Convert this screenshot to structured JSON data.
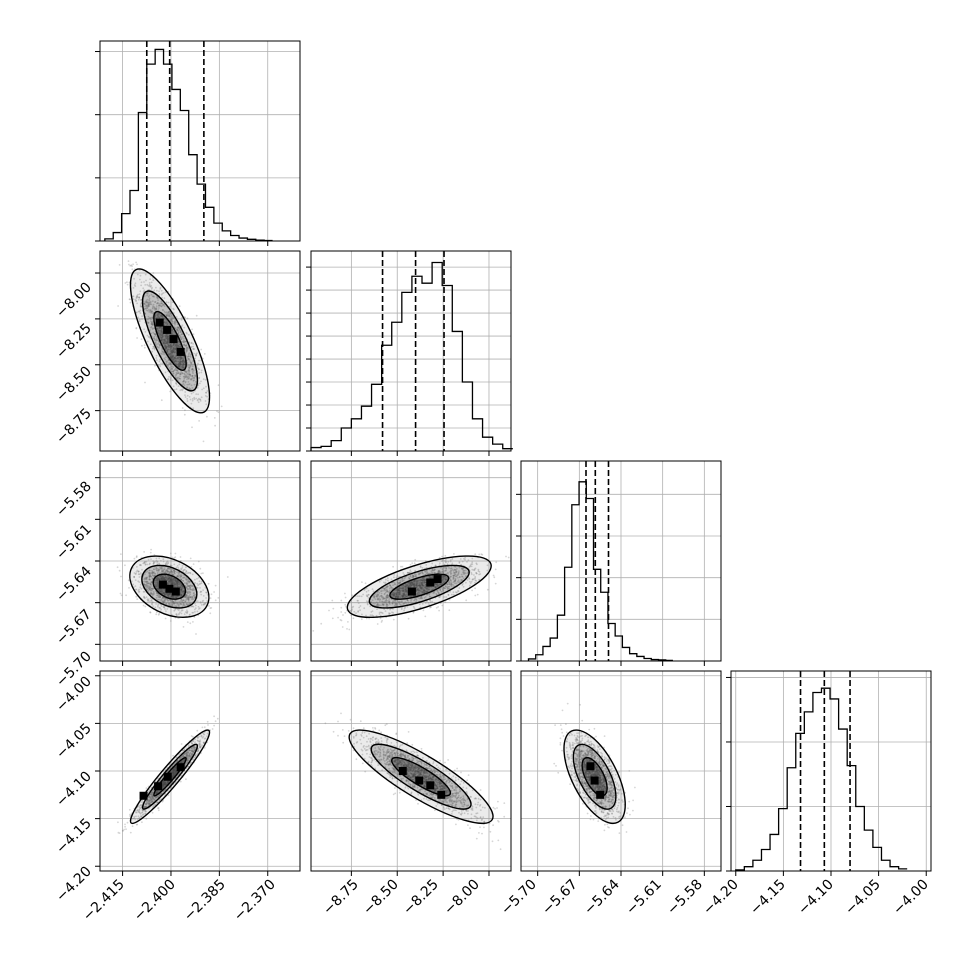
{
  "figure": {
    "type": "corner-plot",
    "params": 4,
    "quantile_lines": "dashed",
    "grid": true,
    "colors": {
      "line": "#000000",
      "points": "#8a8a8a",
      "grid": "#b0b0b0",
      "background": "#ffffff"
    }
  },
  "chart_data": [
    {
      "type": "histogram",
      "panel": "hist-1",
      "x_range": [
        -2.422,
        -2.36
      ],
      "ylim": [
        0,
        950
      ],
      "y_ticks": [
        0,
        300,
        600,
        900
      ],
      "bin_edges": [
        -2.4205,
        -2.4179,
        -2.4153,
        -2.4127,
        -2.4101,
        -2.4075,
        -2.4049,
        -2.4023,
        -2.3997,
        -2.3971,
        -2.3945,
        -2.3919,
        -2.3893,
        -2.3867,
        -2.3841,
        -2.3815,
        -2.3789,
        -2.3763,
        -2.3737,
        -2.3711,
        -2.3685
      ],
      "counts": [
        10,
        40,
        130,
        240,
        610,
        840,
        910,
        840,
        720,
        620,
        410,
        270,
        160,
        85,
        48,
        26,
        14,
        8,
        4,
        2
      ],
      "quantiles": [
        -2.4075,
        -2.4004,
        -2.3898
      ]
    },
    {
      "type": "histogram",
      "panel": "hist-2",
      "x_range": [
        -8.97,
        -7.88
      ],
      "ylim": [
        0,
        870
      ],
      "y_ticks": [
        0,
        100,
        200,
        300,
        400,
        500,
        600,
        700,
        800
      ],
      "bin_edges": [
        -8.97,
        -8.915,
        -8.86,
        -8.805,
        -8.75,
        -8.695,
        -8.64,
        -8.585,
        -8.53,
        -8.475,
        -8.42,
        -8.365,
        -8.31,
        -8.255,
        -8.2,
        -8.145,
        -8.09,
        -8.035,
        -7.98,
        -7.925,
        -7.87
      ],
      "counts": [
        15,
        20,
        45,
        100,
        140,
        195,
        290,
        460,
        560,
        690,
        760,
        730,
        820,
        720,
        520,
        300,
        140,
        60,
        30,
        10
      ],
      "quantiles": [
        -8.58,
        -8.4,
        -8.245
      ]
    },
    {
      "type": "histogram",
      "panel": "hist-3",
      "x_range": [
        -5.712,
        -5.568
      ],
      "ylim": [
        0,
        960
      ],
      "y_ticks": [
        0,
        200,
        400,
        600,
        800
      ],
      "bin_edges": [
        -5.7066,
        -5.7014,
        -5.6962,
        -5.691,
        -5.6858,
        -5.6806,
        -5.6754,
        -5.6702,
        -5.665,
        -5.6598,
        -5.6546,
        -5.6494,
        -5.6442,
        -5.639,
        -5.6338,
        -5.6286,
        -5.6234,
        -5.6182,
        -5.613,
        -5.6078,
        -5.6026
      ],
      "counts": [
        10,
        30,
        70,
        110,
        220,
        450,
        750,
        860,
        780,
        440,
        330,
        180,
        120,
        65,
        35,
        22,
        12,
        7,
        5,
        3
      ],
      "quantiles": [
        -5.6652,
        -5.6585,
        -5.649
      ]
    },
    {
      "type": "histogram",
      "panel": "hist-4",
      "x_range": [
        -4.205,
        -3.995
      ],
      "ylim": [
        0,
        930
      ],
      "y_ticks": [
        0,
        300,
        600,
        900
      ],
      "bin_edges": [
        -4.2,
        -4.191,
        -4.182,
        -4.173,
        -4.164,
        -4.155,
        -4.146,
        -4.137,
        -4.128,
        -4.119,
        -4.11,
        -4.101,
        -4.092,
        -4.083,
        -4.074,
        -4.065,
        -4.056,
        -4.047,
        -4.038,
        -4.029,
        -4.02
      ],
      "counts": [
        5,
        20,
        50,
        100,
        170,
        290,
        480,
        640,
        740,
        830,
        850,
        800,
        660,
        490,
        300,
        190,
        110,
        50,
        20,
        10
      ],
      "quantiles": [
        -4.132,
        -4.107,
        -4.08
      ]
    },
    {
      "type": "scatter-density",
      "panel": "density-2-1",
      "x_range": [
        -2.422,
        -2.36
      ],
      "y_range": [
        -8.97,
        -7.88
      ],
      "center": [
        -2.4003,
        -8.37
      ],
      "sd": [
        0.005,
        0.16
      ],
      "corr": -0.78,
      "dense_points": [
        [
          -2.4035,
          -8.27
        ],
        [
          -2.4012,
          -8.31
        ],
        [
          -2.3992,
          -8.36
        ],
        [
          -2.397,
          -8.43
        ]
      ]
    },
    {
      "type": "scatter-density",
      "panel": "density-3-1",
      "x_range": [
        -2.422,
        -2.36
      ],
      "y_range": [
        -5.712,
        -5.568
      ],
      "center": [
        -2.4005,
        -5.6585
      ],
      "sd": [
        0.005,
        0.009
      ],
      "corr": -0.35,
      "dense_points": [
        [
          -2.4025,
          -5.657
        ],
        [
          -2.4005,
          -5.66
        ],
        [
          -2.3985,
          -5.662
        ]
      ]
    },
    {
      "type": "scatter-density",
      "panel": "density-3-2",
      "x_range": [
        -8.97,
        -7.88
      ],
      "y_range": [
        -5.712,
        -5.568
      ],
      "center": [
        -8.38,
        -5.6585
      ],
      "sd": [
        0.16,
        0.009
      ],
      "corr": 0.68,
      "dense_points": [
        [
          -8.42,
          -5.662
        ],
        [
          -8.32,
          -5.6555
        ],
        [
          -8.28,
          -5.653
        ]
      ]
    },
    {
      "type": "scatter-density",
      "panel": "density-4-1",
      "x_range": [
        -2.422,
        -2.36
      ],
      "y_range": [
        -4.205,
        -3.995
      ],
      "center": [
        -2.4003,
        -4.106
      ],
      "sd": [
        0.005,
        0.02
      ],
      "corr": 0.95,
      "dense_points": [
        [
          -2.4085,
          -4.126
        ],
        [
          -2.404,
          -4.116
        ],
        [
          -2.401,
          -4.106
        ],
        [
          -2.397,
          -4.096
        ]
      ]
    },
    {
      "type": "scatter-density",
      "panel": "density-4-2",
      "x_range": [
        -8.97,
        -7.88
      ],
      "y_range": [
        -4.205,
        -3.995
      ],
      "center": [
        -8.37,
        -4.106
      ],
      "sd": [
        0.16,
        0.02
      ],
      "corr": -0.85,
      "dense_points": [
        [
          -8.47,
          -4.1
        ],
        [
          -8.38,
          -4.11
        ],
        [
          -8.32,
          -4.115
        ],
        [
          -8.26,
          -4.125
        ]
      ]
    },
    {
      "type": "scatter-density",
      "panel": "density-4-3",
      "x_range": [
        -5.712,
        -5.568
      ],
      "y_range": [
        -4.205,
        -3.995
      ],
      "center": [
        -5.659,
        -4.106
      ],
      "sd": [
        0.009,
        0.02
      ],
      "corr": -0.6,
      "dense_points": [
        [
          -5.662,
          -4.095
        ],
        [
          -5.659,
          -4.11
        ],
        [
          -5.655,
          -4.125
        ]
      ]
    }
  ],
  "axes": {
    "col1_x_ticks": [
      "−2.415",
      "−2.400",
      "−2.385",
      "−2.370"
    ],
    "col2_x_ticks": [
      "−8.75",
      "−8.50",
      "−8.25",
      "−8.00"
    ],
    "col3_x_ticks": [
      "−5.70",
      "−5.67",
      "−5.64",
      "−5.61",
      "−5.58"
    ],
    "col4_x_ticks": [
      "−4.20",
      "−4.15",
      "−4.10",
      "−4.05",
      "−4.00"
    ],
    "row2_y_ticks": [
      "−8.00",
      "−8.25",
      "−8.50",
      "−8.75"
    ],
    "row3_y_ticks": [
      "−5.58",
      "−5.61",
      "−5.64",
      "−5.67",
      "−5.70"
    ],
    "row4_y_ticks": [
      "−4.00",
      "−4.05",
      "−4.10",
      "−4.15",
      "−4.20"
    ]
  }
}
